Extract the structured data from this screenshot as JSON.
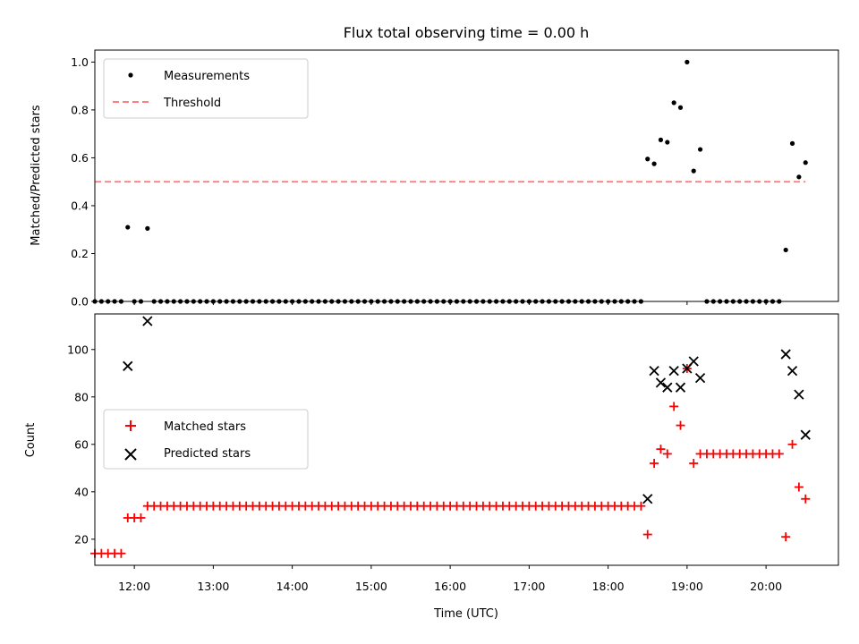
{
  "chart_data": [
    {
      "type": "scatter",
      "title": "Flux total observing time = 0.00 h",
      "xlabel": "",
      "ylabel": "Matched/Predicted stars",
      "xlim": [
        "11:30",
        "20:55"
      ],
      "ylim": [
        0,
        1.05
      ],
      "yticks": [
        0.0,
        0.2,
        0.4,
        0.6,
        0.8,
        1.0
      ],
      "ytick_labels": [
        "0.0",
        "0.2",
        "0.4",
        "0.6",
        "0.8",
        "1.0"
      ],
      "legend": {
        "placement": "upper-left",
        "entries": [
          "Measurements",
          "Threshold"
        ]
      },
      "series": [
        {
          "name": "Measurements",
          "marker": "dot",
          "color": "#000000",
          "times": [
            "11:30",
            "11:35",
            "11:40",
            "11:45",
            "11:50",
            "11:55",
            "12:00",
            "12:05",
            "12:10",
            "12:15",
            "12:20",
            "12:25",
            "12:30",
            "12:35",
            "12:40",
            "12:45",
            "12:50",
            "12:55",
            "13:00",
            "13:05",
            "13:10",
            "13:15",
            "13:20",
            "13:25",
            "13:30",
            "13:35",
            "13:40",
            "13:45",
            "13:50",
            "13:55",
            "14:00",
            "14:05",
            "14:10",
            "14:15",
            "14:20",
            "14:25",
            "14:30",
            "14:35",
            "14:40",
            "14:45",
            "14:50",
            "14:55",
            "15:00",
            "15:05",
            "15:10",
            "15:15",
            "15:20",
            "15:25",
            "15:30",
            "15:35",
            "15:40",
            "15:45",
            "15:50",
            "15:55",
            "16:00",
            "16:05",
            "16:10",
            "16:15",
            "16:20",
            "16:25",
            "16:30",
            "16:35",
            "16:40",
            "16:45",
            "16:50",
            "16:55",
            "17:00",
            "17:05",
            "17:10",
            "17:15",
            "17:20",
            "17:25",
            "17:30",
            "17:35",
            "17:40",
            "17:45",
            "17:50",
            "17:55",
            "18:00",
            "18:05",
            "18:10",
            "18:15",
            "18:20",
            "18:25",
            "18:30",
            "18:35",
            "18:40",
            "18:45",
            "18:50",
            "18:55",
            "19:00",
            "19:05",
            "19:10",
            "19:15",
            "19:20",
            "19:25",
            "19:30",
            "19:35",
            "19:40",
            "19:45",
            "19:50",
            "19:55",
            "20:00",
            "20:05",
            "20:10",
            "20:15",
            "20:20",
            "20:25",
            "20:30"
          ],
          "values": [
            0,
            0,
            0,
            0,
            0,
            0.31,
            0,
            0,
            0.305,
            0,
            0,
            0,
            0,
            0,
            0,
            0,
            0,
            0,
            0,
            0,
            0,
            0,
            0,
            0,
            0,
            0,
            0,
            0,
            0,
            0,
            0,
            0,
            0,
            0,
            0,
            0,
            0,
            0,
            0,
            0,
            0,
            0,
            0,
            0,
            0,
            0,
            0,
            0,
            0,
            0,
            0,
            0,
            0,
            0,
            0,
            0,
            0,
            0,
            0,
            0,
            0,
            0,
            0,
            0,
            0,
            0,
            0,
            0,
            0,
            0,
            0,
            0,
            0,
            0,
            0,
            0,
            0,
            0,
            0,
            0,
            0,
            0,
            0,
            0,
            0.595,
            0.575,
            0.675,
            0.665,
            0.83,
            0.81,
            1.0,
            0.545,
            0.635,
            0,
            0,
            0,
            0,
            0,
            0,
            0,
            0,
            0,
            0,
            0,
            0,
            0.215,
            0.66,
            0.52,
            0.58
          ]
        },
        {
          "name": "Threshold",
          "style": "dashed",
          "color": "#ff7f7f",
          "x": [
            "11:30",
            "20:30"
          ],
          "values": [
            0.5,
            0.5
          ]
        }
      ]
    },
    {
      "type": "scatter",
      "title": "",
      "xlabel": "Time (UTC)",
      "ylabel": "Count",
      "xlim": [
        "11:30",
        "20:55"
      ],
      "ylim": [
        9,
        115
      ],
      "xticks": [
        "12:00",
        "13:00",
        "14:00",
        "15:00",
        "16:00",
        "17:00",
        "18:00",
        "19:00",
        "20:00"
      ],
      "yticks": [
        20,
        40,
        60,
        80,
        100
      ],
      "ytick_labels": [
        "20",
        "40",
        "60",
        "80",
        "100"
      ],
      "legend": {
        "placement": "center-left",
        "entries": [
          "Matched stars",
          "Predicted stars"
        ]
      },
      "series": [
        {
          "name": "Matched stars",
          "marker": "plus",
          "color": "#ff0000",
          "times": [
            "11:30",
            "11:35",
            "11:40",
            "11:45",
            "11:50",
            "11:55",
            "12:00",
            "12:05",
            "12:10",
            "12:15",
            "12:20",
            "12:25",
            "12:30",
            "12:35",
            "12:40",
            "12:45",
            "12:50",
            "12:55",
            "13:00",
            "13:05",
            "13:10",
            "13:15",
            "13:20",
            "13:25",
            "13:30",
            "13:35",
            "13:40",
            "13:45",
            "13:50",
            "13:55",
            "14:00",
            "14:05",
            "14:10",
            "14:15",
            "14:20",
            "14:25",
            "14:30",
            "14:35",
            "14:40",
            "14:45",
            "14:50",
            "14:55",
            "15:00",
            "15:05",
            "15:10",
            "15:15",
            "15:20",
            "15:25",
            "15:30",
            "15:35",
            "15:40",
            "15:45",
            "15:50",
            "15:55",
            "16:00",
            "16:05",
            "16:10",
            "16:15",
            "16:20",
            "16:25",
            "16:30",
            "16:35",
            "16:40",
            "16:45",
            "16:50",
            "16:55",
            "17:00",
            "17:05",
            "17:10",
            "17:15",
            "17:20",
            "17:25",
            "17:30",
            "17:35",
            "17:40",
            "17:45",
            "17:50",
            "17:55",
            "18:00",
            "18:05",
            "18:10",
            "18:15",
            "18:20",
            "18:25",
            "18:30",
            "18:35",
            "18:40",
            "18:45",
            "18:50",
            "18:55",
            "19:00",
            "19:05",
            "19:10",
            "19:15",
            "19:20",
            "19:25",
            "19:30",
            "19:35",
            "19:40",
            "19:45",
            "19:50",
            "19:55",
            "20:00",
            "20:05",
            "20:10",
            "20:15",
            "20:20",
            "20:25",
            "20:30"
          ],
          "values": [
            14,
            14,
            14,
            14,
            14,
            29,
            29,
            29,
            34,
            34,
            34,
            34,
            34,
            34,
            34,
            34,
            34,
            34,
            34,
            34,
            34,
            34,
            34,
            34,
            34,
            34,
            34,
            34,
            34,
            34,
            34,
            34,
            34,
            34,
            34,
            34,
            34,
            34,
            34,
            34,
            34,
            34,
            34,
            34,
            34,
            34,
            34,
            34,
            34,
            34,
            34,
            34,
            34,
            34,
            34,
            34,
            34,
            34,
            34,
            34,
            34,
            34,
            34,
            34,
            34,
            34,
            34,
            34,
            34,
            34,
            34,
            34,
            34,
            34,
            34,
            34,
            34,
            34,
            34,
            34,
            34,
            34,
            34,
            34,
            22,
            52,
            58,
            56,
            76,
            68,
            92,
            52,
            56,
            56,
            56,
            56,
            56,
            56,
            56,
            56,
            56,
            56,
            56,
            56,
            56,
            21,
            60,
            42,
            37
          ]
        },
        {
          "name": "Predicted stars",
          "marker": "x",
          "color": "#000000",
          "times": [
            "11:55",
            "12:10",
            "18:30",
            "18:35",
            "18:40",
            "18:45",
            "18:50",
            "18:55",
            "19:00",
            "19:05",
            "19:10",
            "20:15",
            "20:20",
            "20:25",
            "20:30"
          ],
          "values": [
            93,
            112,
            37,
            91,
            86,
            84,
            91,
            84,
            92,
            95,
            88,
            98,
            91,
            81,
            64
          ]
        }
      ]
    }
  ]
}
